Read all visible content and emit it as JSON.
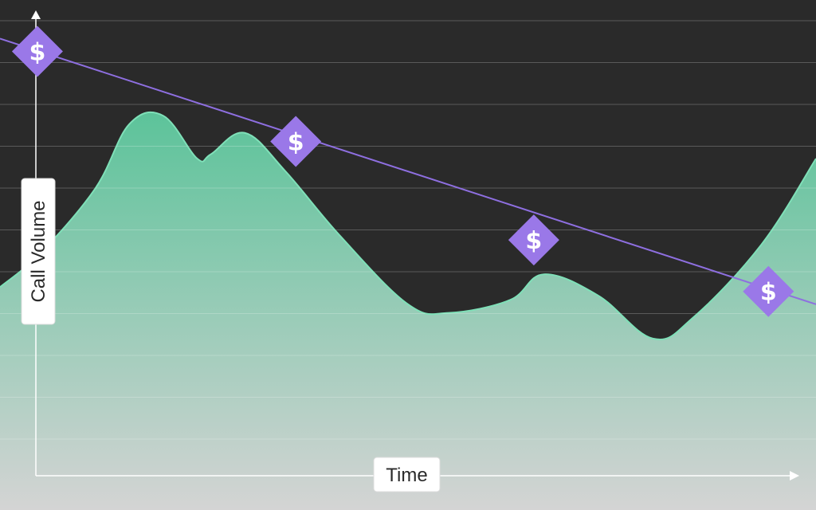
{
  "chart_data": {
    "type": "area",
    "title": "",
    "xlabel": "Time",
    "ylabel": "Call Volume",
    "ticks_labeled": false,
    "grid": true,
    "series": [
      {
        "kind": "area",
        "values": [
          [
            0,
            4.0
          ],
          [
            0.6,
            4.8
          ],
          [
            1.4,
            6.3
          ],
          [
            1.9,
            7.8
          ],
          [
            2.4,
            8.0
          ],
          [
            2.9,
            7.0
          ],
          [
            3.1,
            7.1
          ],
          [
            3.6,
            7.6
          ],
          [
            4.2,
            6.7
          ],
          [
            5.0,
            5.2
          ],
          [
            6.0,
            3.6
          ],
          [
            6.6,
            3.4
          ],
          [
            7.5,
            3.7
          ],
          [
            8.0,
            4.3
          ],
          [
            8.8,
            3.8
          ],
          [
            9.6,
            2.8
          ],
          [
            10.2,
            3.3
          ],
          [
            11.2,
            5.0
          ],
          [
            12.0,
            7.0
          ]
        ]
      },
      {
        "kind": "line",
        "values": [
          [
            0,
            9.8
          ],
          [
            12,
            3.6
          ]
        ],
        "markers": [
          [
            0.55,
            9.5
          ],
          [
            4.35,
            7.4
          ],
          [
            7.85,
            5.1
          ],
          [
            11.3,
            3.9
          ]
        ],
        "marker_symbol": "$"
      }
    ],
    "xlim": [
      0,
      12
    ],
    "ylim": [
      -1.2,
      10.7
    ],
    "colors": {
      "background": "#2a2a2a",
      "grid": "#5a5a5a",
      "area_top": "#5cc39a",
      "area_bottom": "#d4d4d4",
      "area_line": "#7fe0b8",
      "trend_line": "#8e6fe0",
      "marker_fill": "#9a78e8",
      "axis": "#ffffff"
    },
    "icons": {
      "marker": "dollar-diamond-icon"
    }
  }
}
